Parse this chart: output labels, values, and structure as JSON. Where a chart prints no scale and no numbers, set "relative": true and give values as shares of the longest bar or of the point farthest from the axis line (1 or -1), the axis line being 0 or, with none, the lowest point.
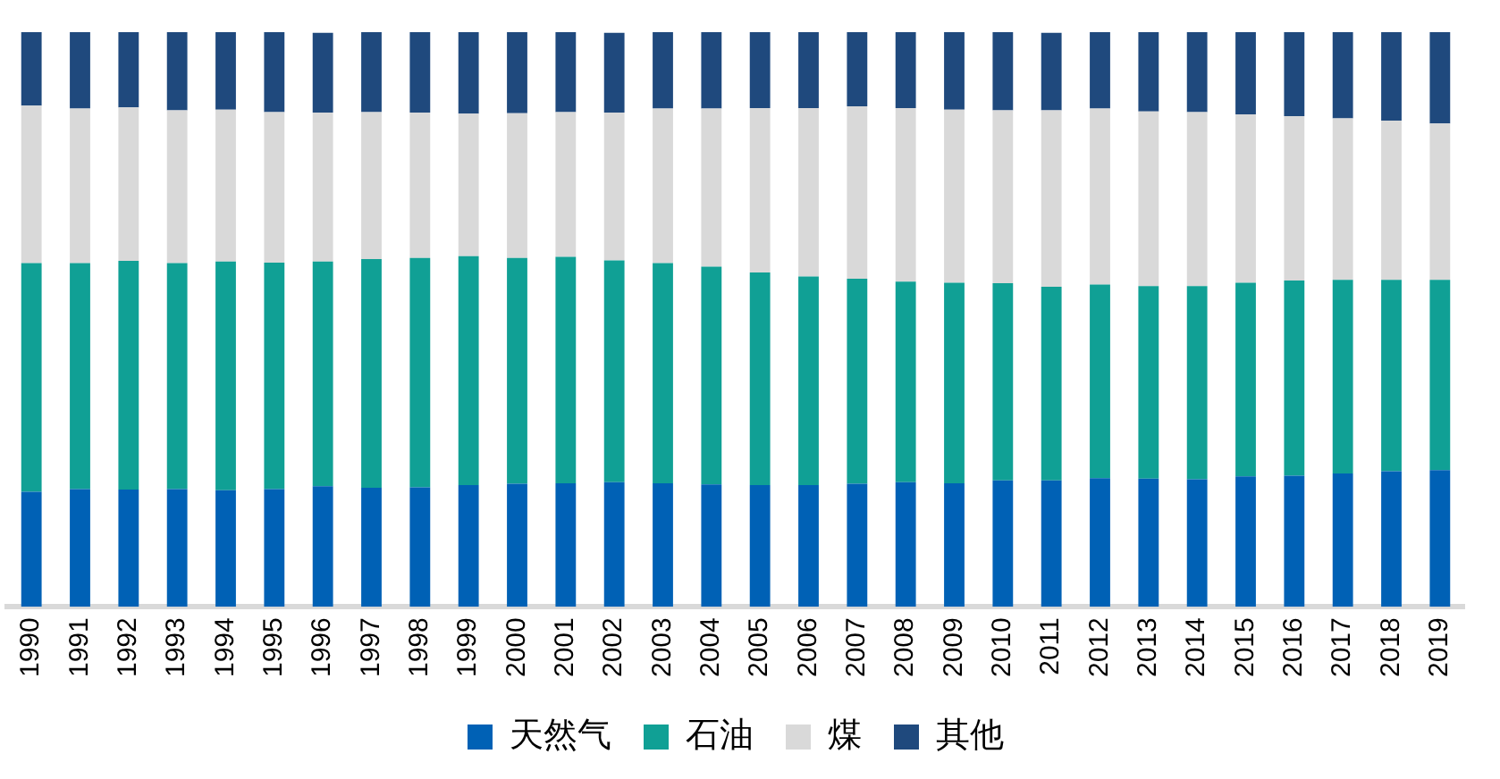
{
  "chart_data": {
    "type": "bar",
    "stacked": true,
    "relative": true,
    "legend": "bottom",
    "grid": false,
    "categories": [
      "1990",
      "1991",
      "1992",
      "1993",
      "1994",
      "1995",
      "1996",
      "1997",
      "1998",
      "1999",
      "2000",
      "2001",
      "2002",
      "2003",
      "2004",
      "2005",
      "2006",
      "2007",
      "2008",
      "2009",
      "2010",
      "2011",
      "2012",
      "2013",
      "2014",
      "2015",
      "2016",
      "2017",
      "2018",
      "2019"
    ],
    "series": [
      {
        "name": "天然气",
        "color": "#0061b5",
        "values": [
          0.2,
          0.205,
          0.204,
          0.205,
          0.203,
          0.205,
          0.21,
          0.207,
          0.208,
          0.212,
          0.214,
          0.215,
          0.217,
          0.215,
          0.213,
          0.212,
          0.212,
          0.214,
          0.217,
          0.215,
          0.22,
          0.22,
          0.224,
          0.223,
          0.222,
          0.227,
          0.228,
          0.232,
          0.236,
          0.238
        ]
      },
      {
        "name": "石油",
        "color": "#10a095",
        "values": [
          0.398,
          0.393,
          0.398,
          0.393,
          0.398,
          0.394,
          0.391,
          0.398,
          0.399,
          0.398,
          0.393,
          0.394,
          0.386,
          0.383,
          0.379,
          0.37,
          0.363,
          0.357,
          0.349,
          0.349,
          0.343,
          0.337,
          0.337,
          0.335,
          0.336,
          0.337,
          0.34,
          0.337,
          0.333,
          0.331
        ]
      },
      {
        "name": "煤",
        "color": "#d9d9d9",
        "values": [
          0.274,
          0.269,
          0.267,
          0.266,
          0.264,
          0.262,
          0.259,
          0.256,
          0.253,
          0.248,
          0.252,
          0.252,
          0.257,
          0.269,
          0.275,
          0.286,
          0.293,
          0.3,
          0.302,
          0.301,
          0.301,
          0.307,
          0.306,
          0.304,
          0.303,
          0.293,
          0.286,
          0.281,
          0.277,
          0.272
        ]
      },
      {
        "name": "其他",
        "color": "#1f497d",
        "values": [
          0.128,
          0.133,
          0.131,
          0.136,
          0.135,
          0.139,
          0.139,
          0.139,
          0.14,
          0.142,
          0.141,
          0.139,
          0.139,
          0.133,
          0.133,
          0.132,
          0.132,
          0.129,
          0.132,
          0.135,
          0.136,
          0.135,
          0.133,
          0.138,
          0.139,
          0.143,
          0.146,
          0.15,
          0.154,
          0.159
        ]
      }
    ]
  }
}
